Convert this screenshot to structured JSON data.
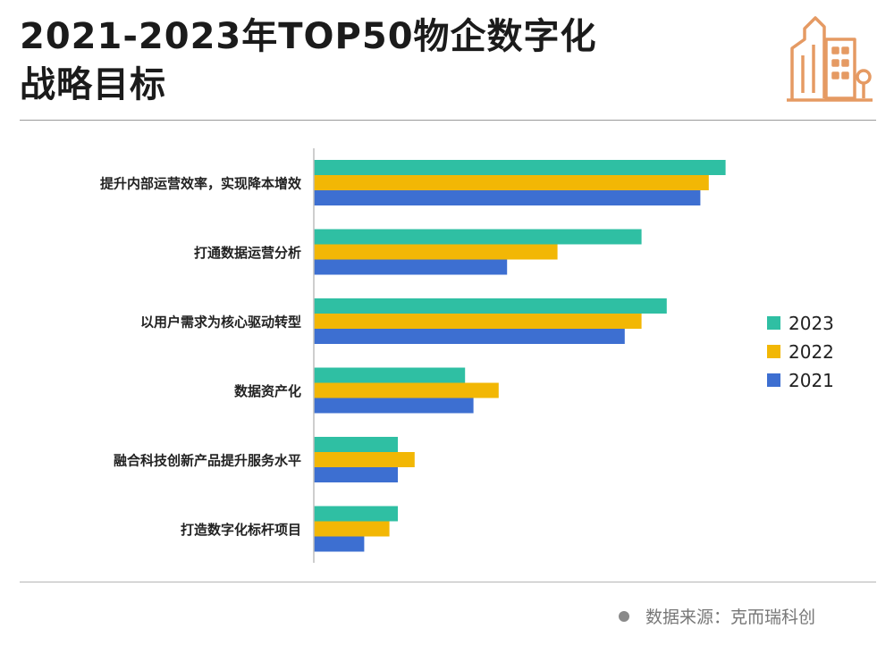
{
  "title": {
    "line1": "2021-2023年TOP50物企数字化",
    "line2": "战略目标"
  },
  "source": "数据来源：克而瑞科创",
  "colors": {
    "2023": "#2fbfa3",
    "2022": "#f2b705",
    "2021": "#3d6fd1",
    "logo": "#e59a63"
  },
  "icons": {
    "logo": "city-buildings-icon",
    "source_bullet": "dot-icon"
  },
  "chart_data": {
    "type": "bar",
    "orientation": "horizontal",
    "title": "2021-2023年TOP50物企数字化战略目标",
    "categories": [
      "提升内部运营效率，实现降本增效",
      "打通数据运营分析",
      "以用户需求为核心驱动转型",
      "数据资产化",
      "融合科技创新产品提升服务水平",
      "打造数字化标杆项目"
    ],
    "series": [
      {
        "name": "2023",
        "color": "#2fbfa3",
        "values": [
          98,
          78,
          84,
          36,
          20,
          20
        ]
      },
      {
        "name": "2022",
        "color": "#f2b705",
        "values": [
          94,
          58,
          78,
          44,
          24,
          18
        ]
      },
      {
        "name": "2021",
        "color": "#3d6fd1",
        "values": [
          92,
          46,
          74,
          38,
          20,
          12
        ]
      }
    ],
    "xlim": [
      0,
      100
    ],
    "xlabel": "",
    "ylabel": "",
    "grid": false,
    "axis_tick_labels_shown": false,
    "legend": {
      "position": "right",
      "entries": [
        "2023",
        "2022",
        "2021"
      ]
    }
  }
}
